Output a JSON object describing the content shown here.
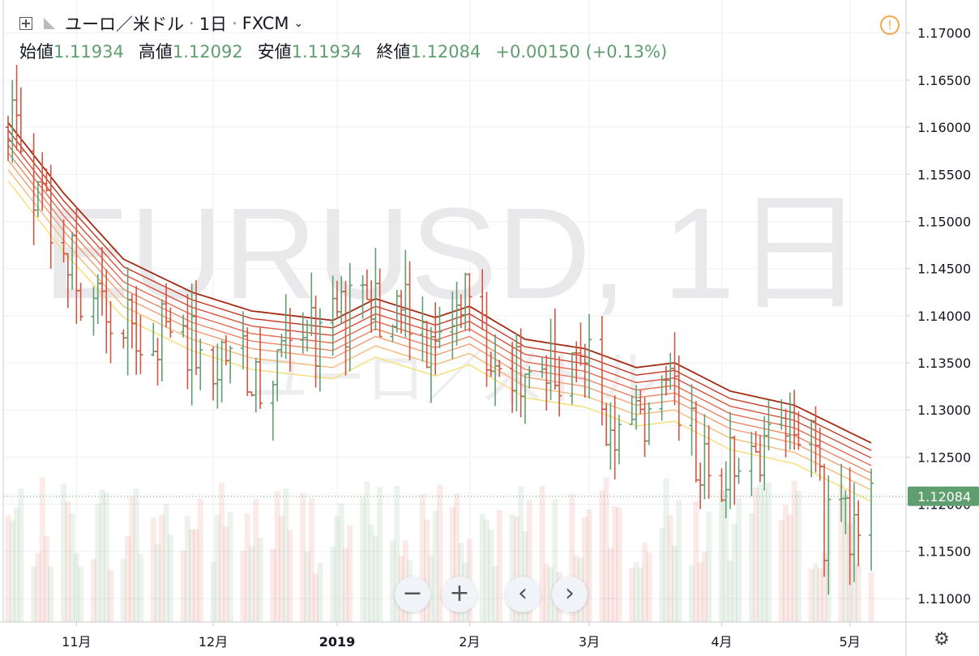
{
  "header": {
    "symbol": "ユーロ／米ドル",
    "interval": "1日",
    "exchange": "FXCM",
    "open_label": "始値",
    "open_value": "1.11934",
    "high_label": "高値",
    "high_value": "1.12092",
    "low_label": "安値",
    "low_value": "1.11934",
    "close_label": "終値",
    "close_value": "1.12084",
    "change": "+0.00150 (+0.13%)"
  },
  "watermark": {
    "line1": "EURUSD, 1日",
    "line2": "ユーロ／米ドル"
  },
  "colors": {
    "up": "#5f9e6e",
    "down": "#d2553f",
    "price_label_bg": "#5f9e6e",
    "warning": "#f5a54a"
  },
  "icons": {
    "add": "plus-box-icon",
    "flag": "flag-icon",
    "dropdown": "chevron-down-icon",
    "warning": "warning-icon",
    "settings": "gear-icon"
  },
  "nav": {
    "zoom_out": "−",
    "zoom_in": "+",
    "scroll_left": "‹",
    "scroll_right": "›"
  },
  "chart_data": {
    "type": "ohlc-bar",
    "title": "ユーロ／米ドル · 1日 · FXCM",
    "ylim": [
      1.1075,
      1.1735
    ],
    "y_ticks": [
      "1.17000",
      "1.16500",
      "1.16000",
      "1.15500",
      "1.15000",
      "1.14500",
      "1.14000",
      "1.13500",
      "1.13000",
      "1.12500",
      "1.12000",
      "1.11500",
      "1.11000"
    ],
    "x_ticks": [
      {
        "label": "11月",
        "date": "2018-11-01"
      },
      {
        "label": "12月",
        "date": "2018-12-03"
      },
      {
        "label": "2019",
        "date": "2019-01-01"
      },
      {
        "label": "2月",
        "date": "2019-02-01"
      },
      {
        "label": "3月",
        "date": "2019-03-01"
      },
      {
        "label": "4月",
        "date": "2019-04-01"
      },
      {
        "label": "5月",
        "date": "2019-05-01"
      }
    ],
    "last_price": "1.12084",
    "x_range": [
      "2018-10-16",
      "2019-05-06"
    ],
    "trend_path": [
      [
        "2018-10-16",
        1.16
      ],
      [
        "2018-10-24",
        1.152
      ],
      [
        "2018-11-02",
        1.143
      ],
      [
        "2018-11-09",
        1.137
      ],
      [
        "2018-11-20",
        1.139
      ],
      [
        "2018-12-03",
        1.136
      ],
      [
        "2018-12-17",
        1.134
      ],
      [
        "2019-01-01",
        1.139
      ],
      [
        "2019-01-10",
        1.142
      ],
      [
        "2019-01-21",
        1.138
      ],
      [
        "2019-01-30",
        1.141
      ],
      [
        "2019-02-08",
        1.136
      ],
      [
        "2019-02-20",
        1.134
      ],
      [
        "2019-03-01",
        1.135
      ],
      [
        "2019-03-08",
        1.126
      ],
      [
        "2019-03-19",
        1.134
      ],
      [
        "2019-03-29",
        1.123
      ],
      [
        "2019-04-10",
        1.127
      ],
      [
        "2019-04-22",
        1.126
      ],
      [
        "2019-04-25",
        1.118
      ],
      [
        "2019-04-30",
        1.117
      ],
      [
        "2019-05-06",
        1.121
      ]
    ],
    "ma_ribbon": {
      "base": [
        [
          "2018-10-16",
          1.1605
        ],
        [
          "2018-10-29",
          1.153
        ],
        [
          "2018-11-12",
          1.146
        ],
        [
          "2018-11-28",
          1.1425
        ],
        [
          "2018-12-12",
          1.1405
        ],
        [
          "2018-12-31",
          1.1395
        ],
        [
          "2019-01-10",
          1.1418
        ],
        [
          "2019-01-24",
          1.1398
        ],
        [
          "2019-02-01",
          1.141
        ],
        [
          "2019-02-14",
          1.1375
        ],
        [
          "2019-02-28",
          1.1365
        ],
        [
          "2019-03-12",
          1.1345
        ],
        [
          "2019-03-21",
          1.135
        ],
        [
          "2019-04-03",
          1.132
        ],
        [
          "2019-04-18",
          1.1305
        ],
        [
          "2019-05-06",
          1.1265
        ]
      ],
      "offsets": [
        0.0,
        -0.0008,
        -0.0016,
        -0.0024,
        -0.0032,
        -0.004,
        -0.005,
        -0.0062
      ],
      "colors": [
        "#a42a12",
        "#c23a22",
        "#d8503a",
        "#e56a4e",
        "#ec8564",
        "#f19e72",
        "#f5bb7a",
        "#f7dd74"
      ]
    },
    "volume_note": "volume histogram at bottom of pane"
  }
}
